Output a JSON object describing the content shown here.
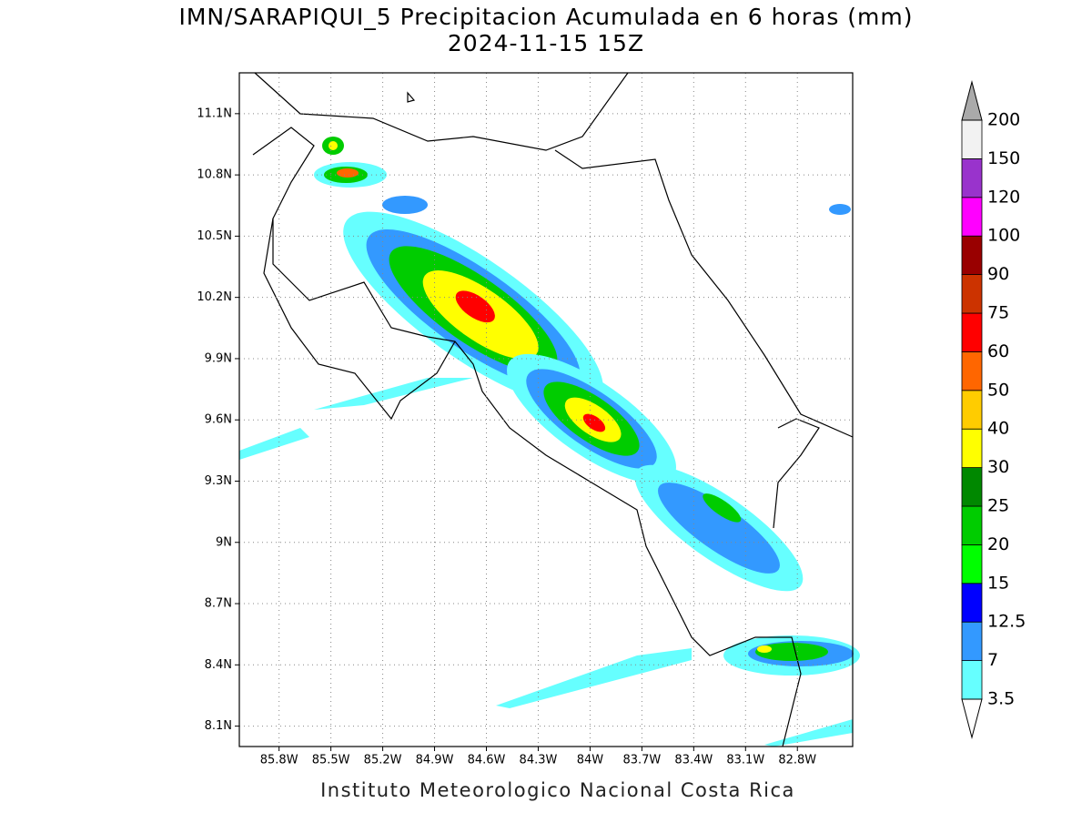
{
  "title": [
    "IMN/SARAPIQUI_5 Precipitacion Acumulada en 6 horas (mm)",
    "2024-11-15 15Z"
  ],
  "map": {
    "lonlim": [
      -86.03,
      -82.48
    ],
    "latlim": [
      8.0,
      11.3
    ],
    "lon_ticks": [
      {
        "value": -85.8,
        "label": "85.8W"
      },
      {
        "value": -85.5,
        "label": "85.5W"
      },
      {
        "value": -85.2,
        "label": "85.2W"
      },
      {
        "value": -84.9,
        "label": "84.9W"
      },
      {
        "value": -84.6,
        "label": "84.6W"
      },
      {
        "value": -84.3,
        "label": "84.3W"
      },
      {
        "value": -84,
        "label": "84W"
      },
      {
        "value": -83.7,
        "label": "83.7W"
      },
      {
        "value": -83.4,
        "label": "83.4W"
      },
      {
        "value": -83.1,
        "label": "83.1W"
      },
      {
        "value": -82.8,
        "label": "82.8W"
      }
    ],
    "lat_ticks": [
      {
        "value": 11.1,
        "label": "11.1N"
      },
      {
        "value": 10.8,
        "label": "10.8N"
      },
      {
        "value": 10.5,
        "label": "10.5N"
      },
      {
        "value": 10.2,
        "label": "10.2N"
      },
      {
        "value": 9.9,
        "label": "9.9N"
      },
      {
        "value": 9.6,
        "label": "9.6N"
      },
      {
        "value": 9.3,
        "label": "9.3N"
      },
      {
        "value": 9,
        "label": "9N"
      },
      {
        "value": 8.7,
        "label": "8.7N"
      },
      {
        "value": 8.4,
        "label": "8.4N"
      },
      {
        "value": 8.1,
        "label": "8.1N"
      }
    ]
  },
  "colorbar": {
    "levels": [
      3.5,
      7,
      12.5,
      15,
      20,
      25,
      30,
      40,
      50,
      60,
      75,
      90,
      100,
      120,
      150,
      200
    ],
    "colors": [
      "#66ffff",
      "#3399ff",
      "#0000ff",
      "#00ff00",
      "#00cc00",
      "#008800",
      "#ffff00",
      "#ffcc00",
      "#ff6600",
      "#ff0000",
      "#cc3300",
      "#990000",
      "#ff00ff",
      "#9933cc",
      "#f2f2f2"
    ],
    "under_color": "#ffffff",
    "over_color": "#aaaaaa"
  },
  "footer": "Instituto Meteorologico Nacional Costa Rica"
}
